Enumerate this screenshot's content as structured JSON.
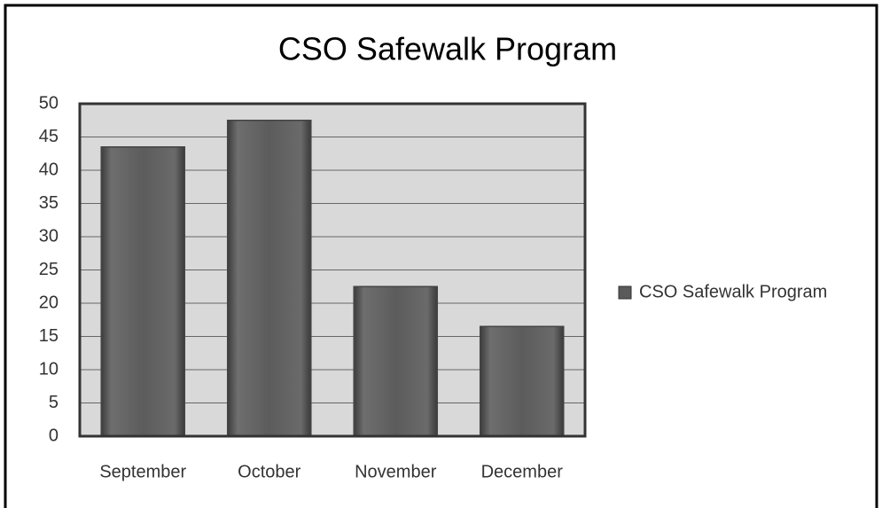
{
  "chart_data": {
    "type": "bar",
    "title": "CSO Safewalk Program",
    "categories": [
      "September",
      "October",
      "November",
      "December"
    ],
    "series": [
      {
        "name": "CSO Safewalk Program",
        "color": "#5a5a5a",
        "values": [
          43.5,
          47.5,
          22.5,
          16.5
        ]
      }
    ],
    "ylim": [
      0,
      50
    ],
    "yticks": [
      0,
      5,
      10,
      15,
      20,
      25,
      30,
      35,
      40,
      45,
      50
    ],
    "grid": true,
    "legend": "right"
  }
}
